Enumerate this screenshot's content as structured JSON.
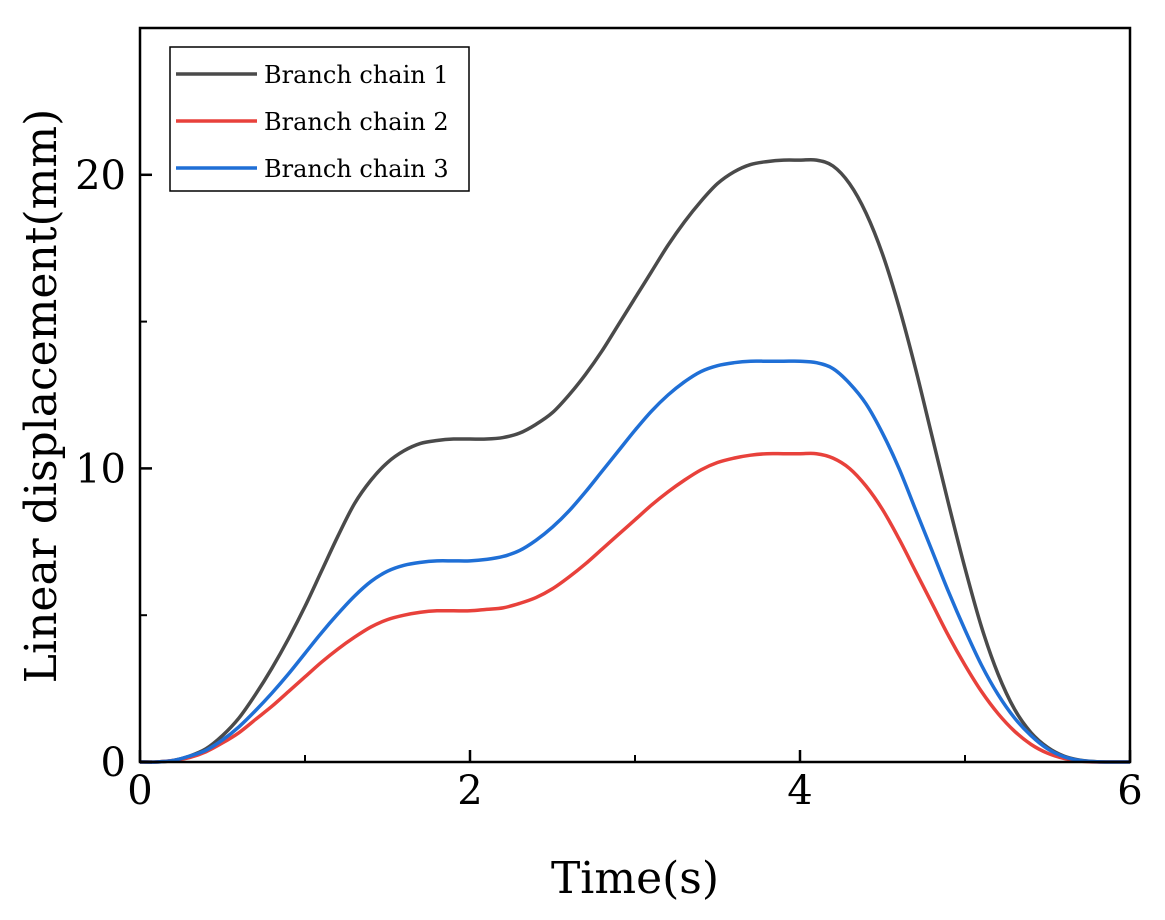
{
  "chart_data": {
    "type": "line",
    "xlabel": "Time(s)",
    "ylabel": "Linear displacement(mm)",
    "xlim": [
      0,
      6
    ],
    "ylim": [
      0,
      25
    ],
    "xticks": [
      0,
      2,
      4,
      6
    ],
    "xminor": [
      1,
      3,
      5
    ],
    "yticks": [
      0,
      10,
      20
    ],
    "yminor": [
      5,
      15
    ],
    "grid": false,
    "legend_position": "top-left",
    "series": [
      {
        "name": "Branch chain 1",
        "color": "#4a4a4a",
        "x": [
          0,
          0.1,
          0.2,
          0.3,
          0.4,
          0.5,
          0.6,
          0.7,
          0.8,
          0.9,
          1.0,
          1.1,
          1.2,
          1.3,
          1.4,
          1.5,
          1.6,
          1.7,
          1.8,
          1.9,
          2.0,
          2.1,
          2.2,
          2.3,
          2.4,
          2.5,
          2.6,
          2.7,
          2.8,
          2.9,
          3.0,
          3.1,
          3.2,
          3.3,
          3.4,
          3.5,
          3.6,
          3.7,
          3.8,
          3.9,
          4.0,
          4.1,
          4.2,
          4.3,
          4.4,
          4.5,
          4.6,
          4.7,
          4.8,
          4.9,
          5.0,
          5.1,
          5.2,
          5.3,
          5.4,
          5.5,
          5.6,
          5.7,
          5.8,
          5.9,
          6.0
        ],
        "y": [
          0,
          0,
          0.05,
          0.2,
          0.45,
          0.9,
          1.5,
          2.3,
          3.2,
          4.2,
          5.3,
          6.5,
          7.7,
          8.8,
          9.6,
          10.2,
          10.6,
          10.85,
          10.95,
          11.0,
          11.0,
          11.0,
          11.05,
          11.2,
          11.5,
          11.9,
          12.5,
          13.2,
          14.0,
          14.9,
          15.8,
          16.7,
          17.6,
          18.4,
          19.1,
          19.7,
          20.1,
          20.35,
          20.45,
          20.5,
          20.5,
          20.5,
          20.3,
          19.7,
          18.7,
          17.3,
          15.5,
          13.4,
          11.1,
          8.8,
          6.6,
          4.6,
          3.0,
          1.8,
          1.0,
          0.5,
          0.2,
          0.06,
          0.01,
          0,
          0
        ]
      },
      {
        "name": "Branch chain 2",
        "color": "#e8413b",
        "x": [
          0,
          0.1,
          0.2,
          0.3,
          0.4,
          0.5,
          0.6,
          0.7,
          0.8,
          0.9,
          1.0,
          1.1,
          1.2,
          1.3,
          1.4,
          1.5,
          1.6,
          1.7,
          1.8,
          1.9,
          2.0,
          2.1,
          2.2,
          2.3,
          2.4,
          2.5,
          2.6,
          2.7,
          2.8,
          2.9,
          3.0,
          3.1,
          3.2,
          3.3,
          3.4,
          3.5,
          3.6,
          3.7,
          3.8,
          3.9,
          4.0,
          4.1,
          4.2,
          4.3,
          4.4,
          4.5,
          4.6,
          4.7,
          4.8,
          4.9,
          5.0,
          5.1,
          5.2,
          5.3,
          5.4,
          5.5,
          5.6,
          5.7,
          5.8,
          5.9,
          6.0
        ],
        "y": [
          0,
          0,
          0.05,
          0.15,
          0.35,
          0.65,
          1.0,
          1.45,
          1.9,
          2.4,
          2.9,
          3.4,
          3.85,
          4.25,
          4.6,
          4.85,
          5.0,
          5.1,
          5.15,
          5.15,
          5.15,
          5.2,
          5.25,
          5.4,
          5.6,
          5.9,
          6.3,
          6.75,
          7.25,
          7.75,
          8.25,
          8.75,
          9.2,
          9.6,
          9.95,
          10.2,
          10.35,
          10.45,
          10.5,
          10.5,
          10.5,
          10.5,
          10.35,
          10.0,
          9.4,
          8.6,
          7.6,
          6.5,
          5.4,
          4.3,
          3.3,
          2.4,
          1.65,
          1.05,
          0.6,
          0.3,
          0.12,
          0.03,
          0,
          0,
          0
        ]
      },
      {
        "name": "Branch chain 3",
        "color": "#1f6fd6",
        "x": [
          0,
          0.1,
          0.2,
          0.3,
          0.4,
          0.5,
          0.6,
          0.7,
          0.8,
          0.9,
          1.0,
          1.1,
          1.2,
          1.3,
          1.4,
          1.5,
          1.6,
          1.7,
          1.8,
          1.9,
          2.0,
          2.1,
          2.2,
          2.3,
          2.4,
          2.5,
          2.6,
          2.7,
          2.8,
          2.9,
          3.0,
          3.1,
          3.2,
          3.3,
          3.4,
          3.5,
          3.6,
          3.7,
          3.8,
          3.9,
          4.0,
          4.1,
          4.2,
          4.3,
          4.4,
          4.5,
          4.6,
          4.7,
          4.8,
          4.9,
          5.0,
          5.1,
          5.2,
          5.3,
          5.4,
          5.5,
          5.6,
          5.7,
          5.8,
          5.9,
          6.0
        ],
        "y": [
          0,
          0,
          0.05,
          0.2,
          0.4,
          0.75,
          1.2,
          1.75,
          2.35,
          3.0,
          3.7,
          4.4,
          5.05,
          5.65,
          6.15,
          6.5,
          6.7,
          6.8,
          6.85,
          6.85,
          6.85,
          6.9,
          7.0,
          7.2,
          7.55,
          8.0,
          8.55,
          9.2,
          9.9,
          10.6,
          11.3,
          11.95,
          12.5,
          12.95,
          13.3,
          13.5,
          13.6,
          13.65,
          13.65,
          13.65,
          13.65,
          13.6,
          13.4,
          12.9,
          12.2,
          11.2,
          10.0,
          8.6,
          7.2,
          5.8,
          4.5,
          3.3,
          2.3,
          1.5,
          0.9,
          0.45,
          0.18,
          0.05,
          0.01,
          0,
          0
        ]
      }
    ]
  }
}
